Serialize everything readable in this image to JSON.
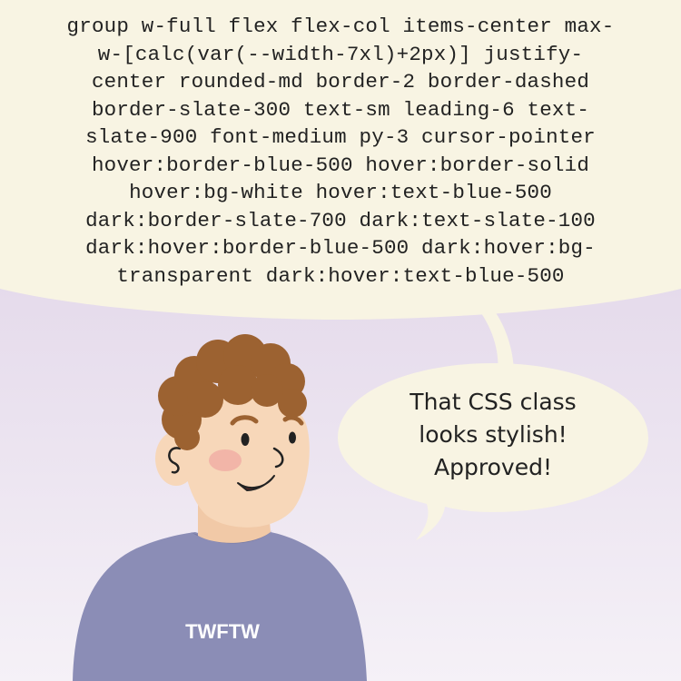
{
  "caption_bubble": {
    "lines": [
      "group w-full flex flex-col items-center max-",
      "w-[calc(var(--width-7xl)+2px)] justify-",
      "center rounded-md border-2 border-dashed",
      "border-slate-300 text-sm leading-6 text-",
      "slate-900 font-medium py-3 cursor-pointer",
      "hover:border-blue-500 hover:border-solid",
      "hover:bg-white hover:text-blue-500",
      "dark:border-slate-700 dark:text-slate-100",
      "dark:hover:border-blue-500 dark:hover:bg-",
      "transparent dark:hover:text-blue-500"
    ]
  },
  "speech_bubble": {
    "lines": [
      "That CSS class",
      "looks stylish!",
      "Approved!"
    ]
  },
  "character": {
    "shirt_text": "TWFTW"
  },
  "colors": {
    "bubble": "#f8f4e3",
    "shirt": "#8b8db6",
    "hair": "#9c6231",
    "skin": "#f7d7b9",
    "background_top": "#d7c8e4",
    "background_bottom": "#f5f1f7"
  }
}
